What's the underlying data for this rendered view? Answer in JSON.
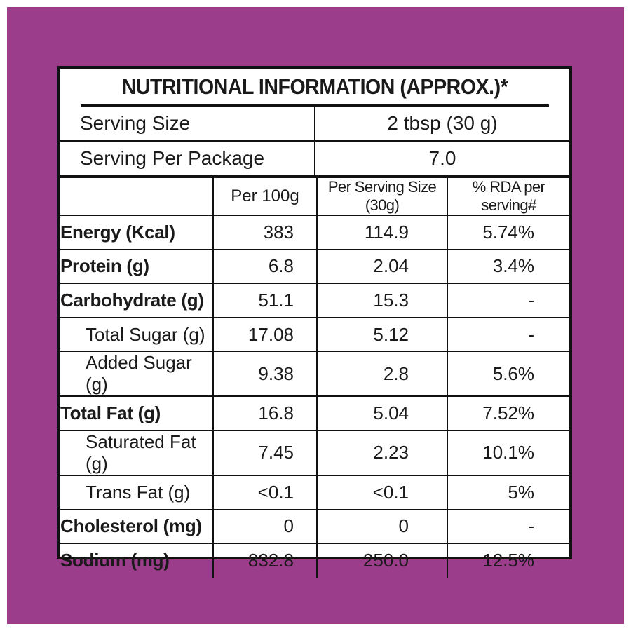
{
  "title": "NUTRITIONAL INFORMATION (APPROX.)*",
  "serving": [
    {
      "label": "Serving Size",
      "value": "2 tbsp (30 g)"
    },
    {
      "label": "Serving Per Package",
      "value": "7.0"
    }
  ],
  "headers": {
    "label": "",
    "per100": "Per 100g",
    "per_serving": "Per Serving Size (30g)",
    "rda": "% RDA per serving#"
  },
  "rows": [
    {
      "label": "Energy (Kcal)",
      "per100": "383",
      "per_serving": "114.9",
      "rda": "5.74%"
    },
    {
      "label": "Protein (g)",
      "per100": "6.8",
      "per_serving": "2.04",
      "rda": "3.4%"
    },
    {
      "label": "Carbohydrate (g)",
      "per100": "51.1",
      "per_serving": "15.3",
      "rda": "-"
    },
    {
      "label": "Total Sugar (g)",
      "per100": "17.08",
      "per_serving": "5.12",
      "rda": "-"
    },
    {
      "label": "Added Sugar (g)",
      "per100": "9.38",
      "per_serving": "2.8",
      "rda": "5.6%"
    },
    {
      "label": "Total Fat (g)",
      "per100": "16.8",
      "per_serving": "5.04",
      "rda": "7.52%"
    },
    {
      "label": "Saturated Fat (g)",
      "per100": "7.45",
      "per_serving": "2.23",
      "rda": "10.1%"
    },
    {
      "label": "Trans Fat (g)",
      "per100": "<0.1",
      "per_serving": "<0.1",
      "rda": "5%"
    },
    {
      "label": "Cholesterol (mg)",
      "per100": "0",
      "per_serving": "0",
      "rda": "-"
    },
    {
      "label": "Sodium (mg)",
      "per100": "832.8",
      "per_serving": "250.0",
      "rda": "12.5%"
    }
  ],
  "colors": {
    "background": "#9b3d8b",
    "panel": "#ffffff",
    "border": "#111111"
  }
}
